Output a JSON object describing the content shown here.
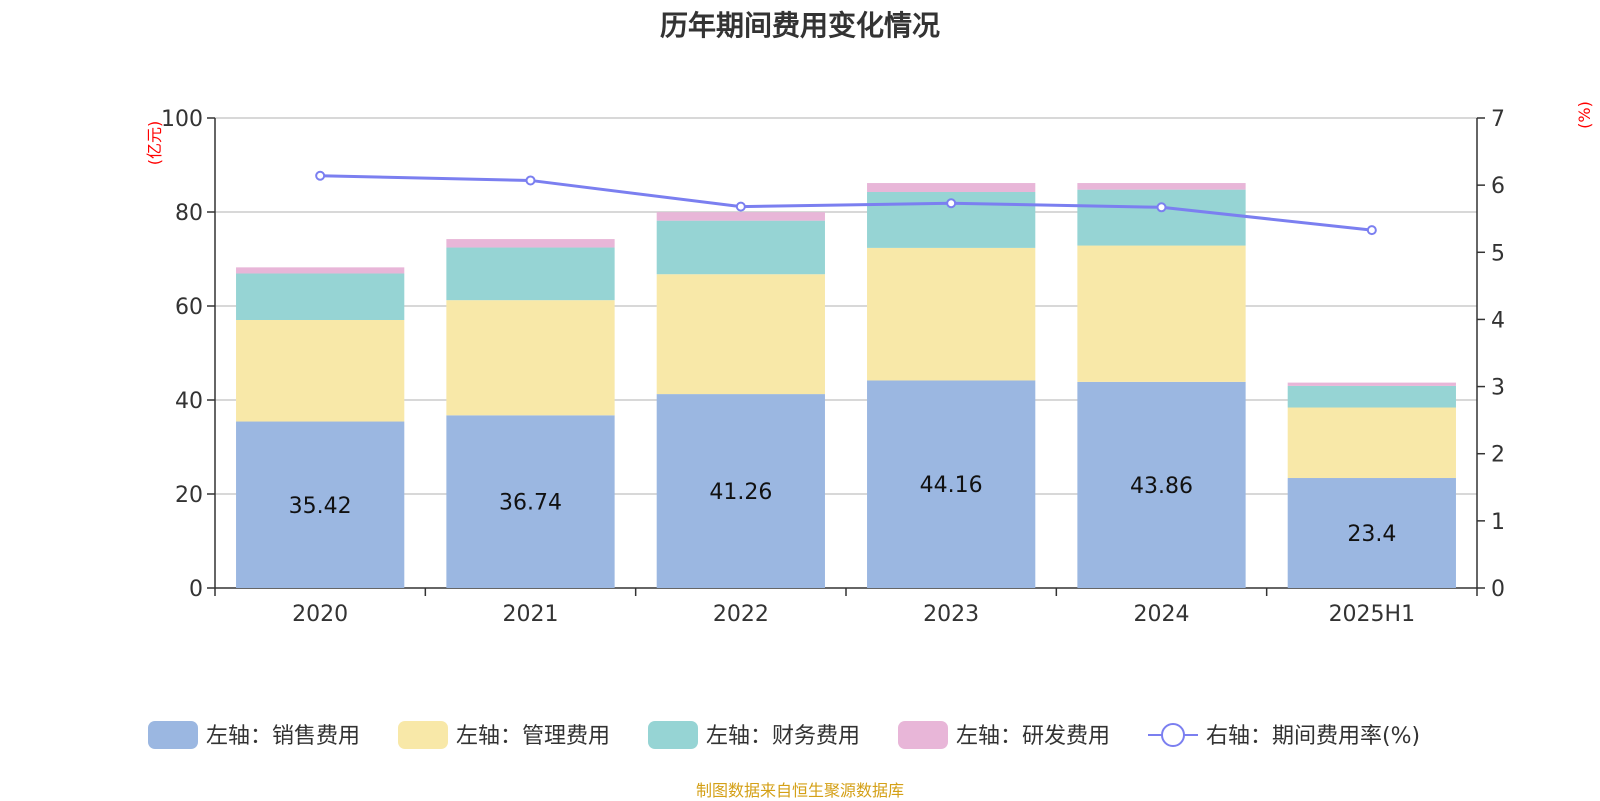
{
  "chart_data": {
    "type": "bar",
    "stacked": true,
    "title": "历年期间费用变化情况",
    "categories": [
      "2020",
      "2021",
      "2022",
      "2023",
      "2024",
      "2025H1"
    ],
    "left_axis": {
      "unit_label": "(亿元)",
      "ylim": [
        0,
        100
      ],
      "ticks": [
        "0",
        "20",
        "40",
        "60",
        "80",
        "100"
      ]
    },
    "right_axis": {
      "unit_label": "(%)",
      "ylim": [
        0,
        7
      ],
      "ticks": [
        "0",
        "1",
        "2",
        "3",
        "4",
        "5",
        "6",
        "7"
      ]
    },
    "grid": true,
    "legend_position": "bottom",
    "series": [
      {
        "name": "左轴：销售费用",
        "axis": "left",
        "type": "bar",
        "color": "#9bb7e1",
        "values": [
          35.42,
          36.74,
          41.26,
          44.16,
          43.86,
          23.4
        ],
        "labels": [
          "35.42",
          "36.74",
          "41.26",
          "44.16",
          "43.86",
          "23.4"
        ]
      },
      {
        "name": "左轴：管理费用",
        "axis": "left",
        "type": "bar",
        "color": "#f8e8a8",
        "values": [
          21.6,
          24.5,
          25.5,
          28.2,
          29.0,
          15.0
        ]
      },
      {
        "name": "左轴：财务费用",
        "axis": "left",
        "type": "bar",
        "color": "#96d4d4",
        "values": [
          9.9,
          11.2,
          11.4,
          11.9,
          11.9,
          4.6
        ]
      },
      {
        "name": "左轴：研发费用",
        "axis": "left",
        "type": "bar",
        "color": "#e8b6d8",
        "values": [
          1.3,
          1.8,
          1.8,
          1.9,
          1.4,
          0.7
        ]
      },
      {
        "name": "右轴：期间费用率(%)",
        "axis": "right",
        "type": "line",
        "color": "#7b7ff0",
        "values": [
          6.14,
          6.07,
          5.68,
          5.73,
          5.67,
          5.33
        ]
      }
    ]
  },
  "source_note": "制图数据来自恒生聚源数据库"
}
